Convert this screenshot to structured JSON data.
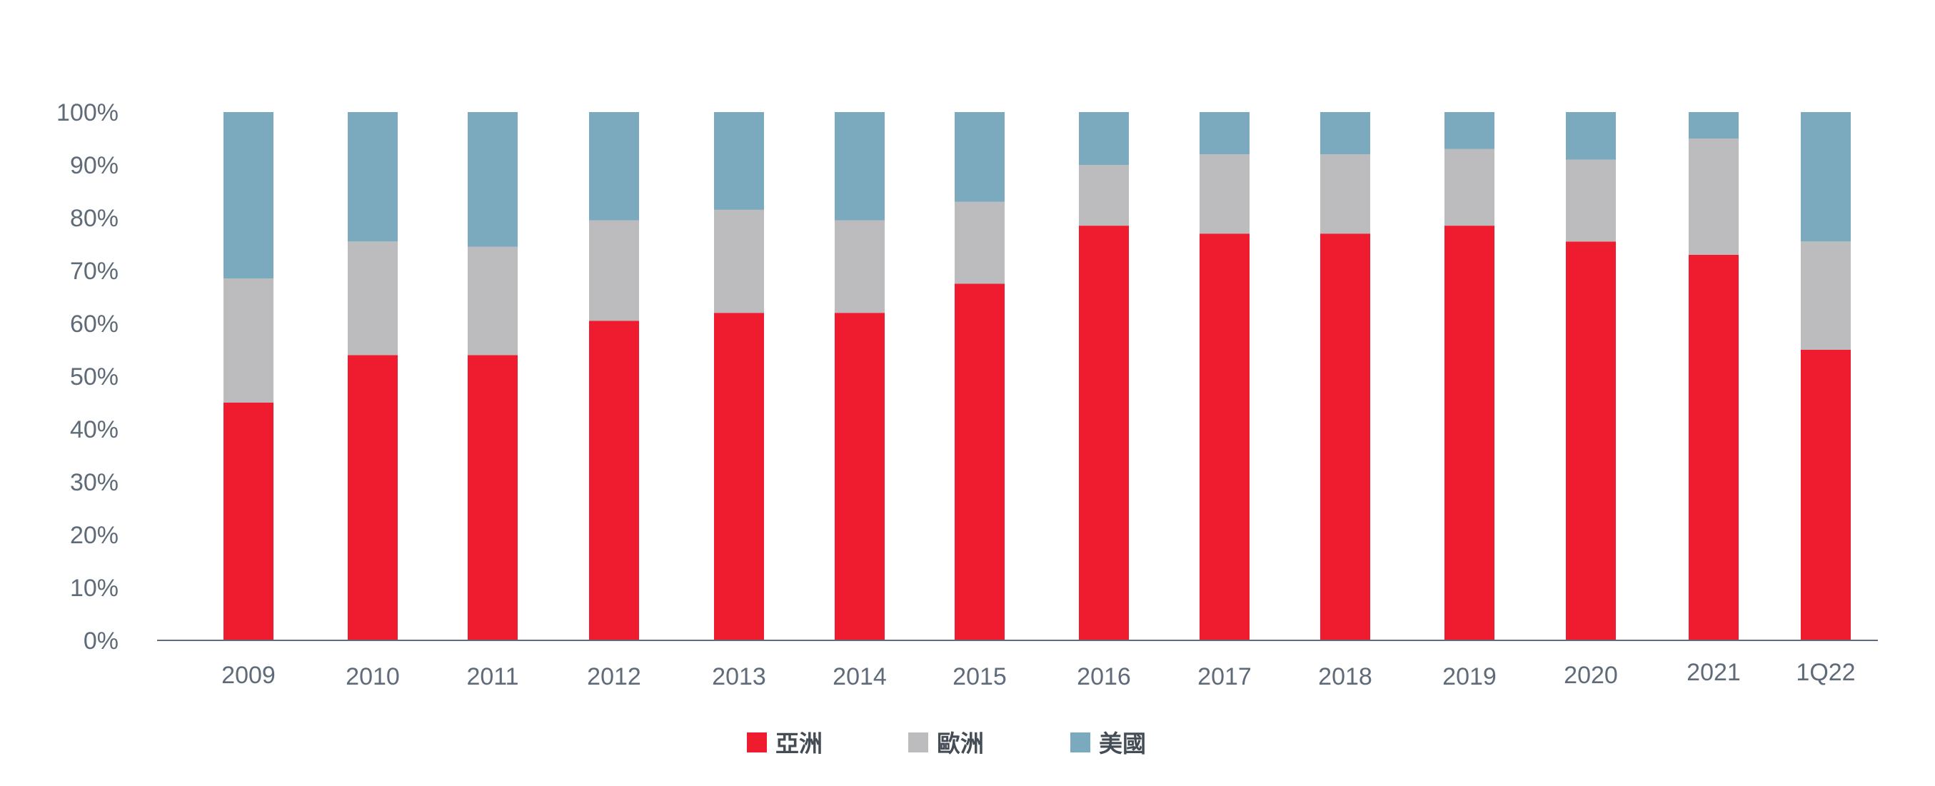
{
  "chart_data": {
    "type": "bar",
    "stacked": true,
    "categories": [
      "2009",
      "2010",
      "2011",
      "2012",
      "2013",
      "2014",
      "2015",
      "2016",
      "2017",
      "2018",
      "2019",
      "2020",
      "2021",
      "1Q22"
    ],
    "series": [
      {
        "name": "亞洲",
        "color": "#ee1c2e",
        "values": [
          45,
          54,
          54,
          60.5,
          62,
          62,
          67.5,
          78.5,
          77,
          77,
          78.5,
          75.5,
          73,
          55
        ]
      },
      {
        "name": "歐洲",
        "color": "#bcbcbe",
        "values": [
          23.5,
          21.5,
          20.5,
          19,
          19.5,
          17.5,
          15.5,
          11.5,
          15,
          15,
          14.5,
          15.5,
          22,
          20.5
        ]
      },
      {
        "name": "美國",
        "color": "#7ba9be",
        "values": [
          31.5,
          24.5,
          25.5,
          20.5,
          18.5,
          20.5,
          17,
          10,
          8,
          8,
          7,
          9,
          5,
          24.5
        ]
      }
    ],
    "ylim": [
      0,
      100
    ],
    "yticks": [
      "0%",
      "10%",
      "20%",
      "30%",
      "40%",
      "50%",
      "60%",
      "70%",
      "80%",
      "90%",
      "100%"
    ],
    "grid": false,
    "legend_position": "bottom-center",
    "axis_color": "#5f6b78"
  }
}
